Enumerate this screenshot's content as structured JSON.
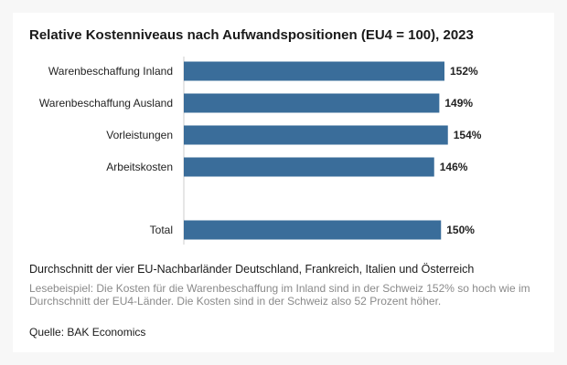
{
  "chart_data": {
    "type": "bar",
    "orientation": "horizontal",
    "title": "Relative Kostenniveaus nach Aufwandspositionen (EU4 = 100), 2023",
    "categories": [
      "Warenbeschaffung Inland",
      "Warenbeschaffung Ausland",
      "Vorleistungen",
      "Arbeitskosten",
      "Total"
    ],
    "values": [
      152,
      149,
      154,
      146,
      150
    ],
    "value_labels": [
      "152%",
      "149%",
      "154%",
      "146%",
      "150%"
    ],
    "unit": "%",
    "xlim": [
      0,
      160
    ],
    "grid": false,
    "legend": "none",
    "bar_color": "#3a6d9a"
  },
  "subtitle": "Durchschnitt der vier EU-Nachbarländer Deutschland, Frankreich, Italien und Österreich",
  "note": "Lesebeispiel: Die Kosten für die Warenbeschaffung im Inland sind in der Schweiz 152% so hoch wie im Durchschnitt der EU4-Länder. Die Kosten sind in der Schweiz also 52 Prozent höher.",
  "source": "Quelle: BAK Economics",
  "colors": {
    "background": "#f7f7f7",
    "card": "#ffffff",
    "axis_line": "#cccccc",
    "note_text": "#8a8a8a"
  }
}
